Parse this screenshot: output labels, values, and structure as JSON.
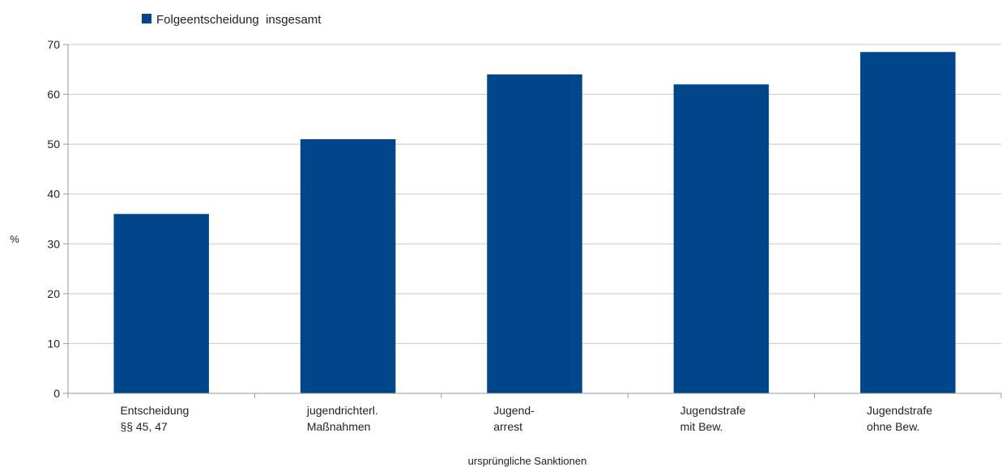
{
  "chart_data": {
    "type": "bar",
    "categories": [
      [
        "Entscheidung",
        "§§ 45, 47"
      ],
      [
        "jugendrichterl.",
        "Maßnahmen"
      ],
      [
        "Jugend-",
        "arrest"
      ],
      [
        "Jugendstrafe",
        "mit Bew."
      ],
      [
        "Jugendstrafe",
        "ohne Bew."
      ]
    ],
    "series": [
      {
        "name": "Folgeentscheidung  insgesamt",
        "values": [
          36,
          51,
          64,
          62,
          68.5
        ]
      }
    ],
    "title": "",
    "xlabel": "ursprüngliche Sanktionen",
    "ylabel": "%",
    "ylim": [
      0,
      70
    ],
    "yticks": [
      0,
      10,
      20,
      30,
      40,
      50,
      60,
      70
    ],
    "grid": true,
    "legend_position": "top-left",
    "colors": {
      "bar": "#00468B",
      "grid": "#c8c8c8",
      "axis": "#999999"
    }
  }
}
